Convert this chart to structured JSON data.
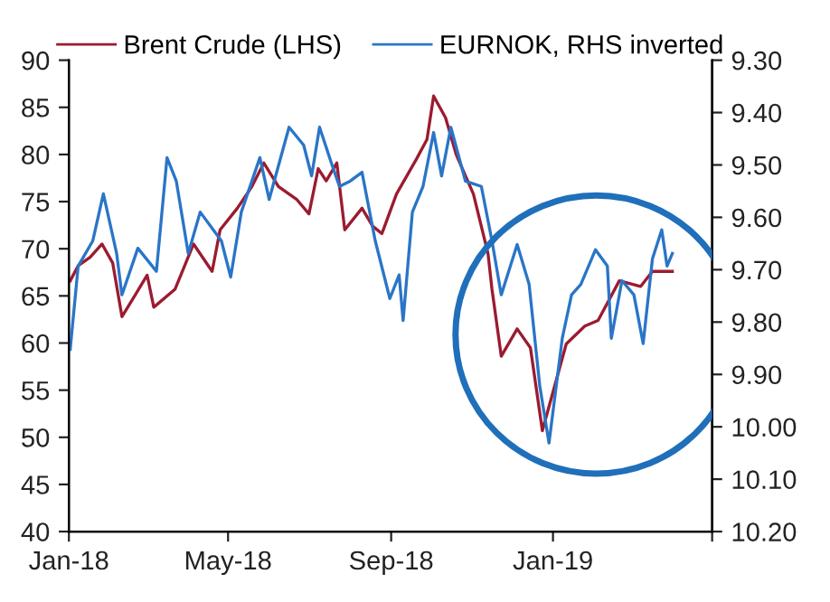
{
  "chart_data": {
    "type": "line",
    "legend": "top",
    "grid": false,
    "marker": "none",
    "line_style": "solid",
    "xlim": [
      "2018-01-01",
      "2019-05-01"
    ],
    "xticks": [
      {
        "value": "2018-01-01",
        "label": "Jan-18"
      },
      {
        "value": "2018-05-01",
        "label": "May-18"
      },
      {
        "value": "2018-09-01",
        "label": "Sep-18"
      },
      {
        "value": "2019-01-01",
        "label": "Jan-19"
      },
      {
        "value": "2019-05-01",
        "label": null
      }
    ],
    "ylim": [
      40,
      90
    ],
    "yticks": [
      40,
      45,
      50,
      55,
      60,
      65,
      70,
      75,
      80,
      85,
      90
    ],
    "y2lim": [
      10.2,
      9.3
    ],
    "y2ticks": [
      {
        "value": 10.2,
        "label": "10.20"
      },
      {
        "value": 10.1,
        "label": "10.10"
      },
      {
        "value": 10.0,
        "label": "10.00"
      },
      {
        "value": 9.9,
        "label": "9.90"
      },
      {
        "value": 9.8,
        "label": "9.80"
      },
      {
        "value": 9.7,
        "label": "9.70"
      },
      {
        "value": 9.6,
        "label": "9.60"
      },
      {
        "value": 9.5,
        "label": "9.50"
      },
      {
        "value": 9.4,
        "label": "9.40"
      },
      {
        "value": 9.3,
        "label": "9.30"
      }
    ],
    "series": [
      {
        "name": "Brent Crude (LHS)",
        "color": "#9b1b30",
        "x": [
          "2018-01-02",
          "2018-01-08",
          "2018-01-17",
          "2018-01-26",
          "2018-02-03",
          "2018-02-10",
          "2018-02-20",
          "2018-03-01",
          "2018-03-06",
          "2018-03-22",
          "2018-04-05",
          "2018-04-19",
          "2018-04-25",
          "2018-05-08",
          "2018-05-19",
          "2018-05-28",
          "2018-06-08",
          "2018-06-22",
          "2018-07-01",
          "2018-07-08",
          "2018-07-14",
          "2018-07-22",
          "2018-07-28",
          "2018-08-10",
          "2018-08-18",
          "2018-08-25",
          "2018-09-05",
          "2018-09-20",
          "2018-09-28",
          "2018-10-03",
          "2018-10-12",
          "2018-10-20",
          "2018-11-02",
          "2018-11-13",
          "2018-11-16",
          "2018-11-23",
          "2018-12-05",
          "2018-12-15",
          "2018-12-24",
          "2019-01-01",
          "2019-01-11",
          "2019-01-25",
          "2019-02-04",
          "2019-02-20",
          "2019-03-08",
          "2019-03-17",
          "2019-04-01"
        ],
        "values": [
          66.6,
          68.2,
          69.1,
          70.5,
          68.5,
          62.8,
          65.1,
          67.2,
          63.8,
          65.7,
          70.5,
          67.6,
          72,
          74.3,
          76.6,
          79.1,
          76.6,
          75.2,
          73.7,
          78.5,
          77.2,
          79.1,
          72,
          74.3,
          72.4,
          71.6,
          75.8,
          79.5,
          81.6,
          86.2,
          83.9,
          80,
          75.8,
          69.5,
          65.7,
          58.6,
          61.5,
          59.5,
          50.7,
          54.8,
          59.9,
          61.8,
          62.4,
          66.6,
          66,
          67.6,
          67.6
        ]
      },
      {
        "name": "EURNOK, RHS inverted",
        "color": "#2a75c7",
        "axis": "y2",
        "x": [
          "2018-01-02",
          "2018-01-08",
          "2018-01-19",
          "2018-01-27",
          "2018-02-06",
          "2018-02-10",
          "2018-02-22",
          "2018-03-08",
          "2018-03-16",
          "2018-03-23",
          "2018-04-01",
          "2018-04-10",
          "2018-04-26",
          "2018-05-03",
          "2018-05-11",
          "2018-05-25",
          "2018-06-01",
          "2018-06-16",
          "2018-06-27",
          "2018-07-03",
          "2018-07-09",
          "2018-07-18",
          "2018-07-24",
          "2018-08-01",
          "2018-08-10",
          "2018-08-20",
          "2018-08-31",
          "2018-09-07",
          "2018-09-10",
          "2018-09-17",
          "2018-09-25",
          "2018-10-03",
          "2018-10-09",
          "2018-10-16",
          "2018-10-27",
          "2018-11-08",
          "2018-11-16",
          "2018-11-23",
          "2018-12-05",
          "2018-12-14",
          "2018-12-22",
          "2018-12-29",
          "2019-01-08",
          "2019-01-15",
          "2019-01-22",
          "2019-02-02",
          "2019-02-11",
          "2019-02-14",
          "2019-02-22",
          "2019-03-03",
          "2019-03-10",
          "2019-03-17",
          "2019-03-24",
          "2019-03-28",
          "2019-04-01"
        ],
        "values": [
          9.852,
          9.693,
          9.645,
          9.555,
          9.669,
          9.748,
          9.659,
          9.703,
          9.486,
          9.531,
          9.669,
          9.59,
          9.645,
          9.714,
          9.59,
          9.486,
          9.566,
          9.428,
          9.462,
          9.521,
          9.428,
          9.497,
          9.541,
          9.531,
          9.514,
          9.645,
          9.755,
          9.71,
          9.797,
          9.59,
          9.541,
          9.438,
          9.521,
          9.428,
          9.531,
          9.541,
          9.645,
          9.748,
          9.652,
          9.728,
          9.921,
          10.031,
          9.831,
          9.748,
          9.728,
          9.662,
          9.693,
          9.831,
          9.721,
          9.748,
          9.841,
          9.679,
          9.624,
          9.693,
          9.669
        ]
      }
    ]
  }
}
